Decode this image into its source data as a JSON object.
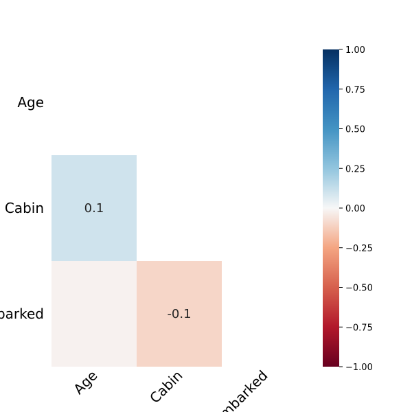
{
  "chart_data": {
    "type": "heatmap",
    "title": "",
    "row_labels": [
      "Age",
      "Cabin",
      "Embarked"
    ],
    "col_labels": [
      "Age",
      "Cabin",
      "Embarked"
    ],
    "mask": "upper_triangle_including_diagonal",
    "values": [
      [
        null,
        null,
        null
      ],
      [
        0.1,
        null,
        null
      ],
      [
        0.0,
        -0.1,
        null
      ]
    ],
    "annotations": [
      [
        "",
        "",
        ""
      ],
      [
        "0.1",
        "",
        ""
      ],
      [
        "",
        "-0.1",
        ""
      ]
    ],
    "colormap": "RdBu",
    "vmin": -1.0,
    "vmax": 1.0,
    "colorbar_ticks": [
      "1.00",
      "0.75",
      "0.50",
      "0.25",
      "0.00",
      "−0.25",
      "−0.50",
      "−0.75",
      "−1.00"
    ],
    "colorbar_tick_values": [
      1.0,
      0.75,
      0.5,
      0.25,
      0.0,
      -0.25,
      -0.5,
      -0.75,
      -1.0
    ],
    "colors": {
      "positive_end": "#053061",
      "negative_end": "#67001f",
      "neutral": "#f7f7f7"
    }
  }
}
